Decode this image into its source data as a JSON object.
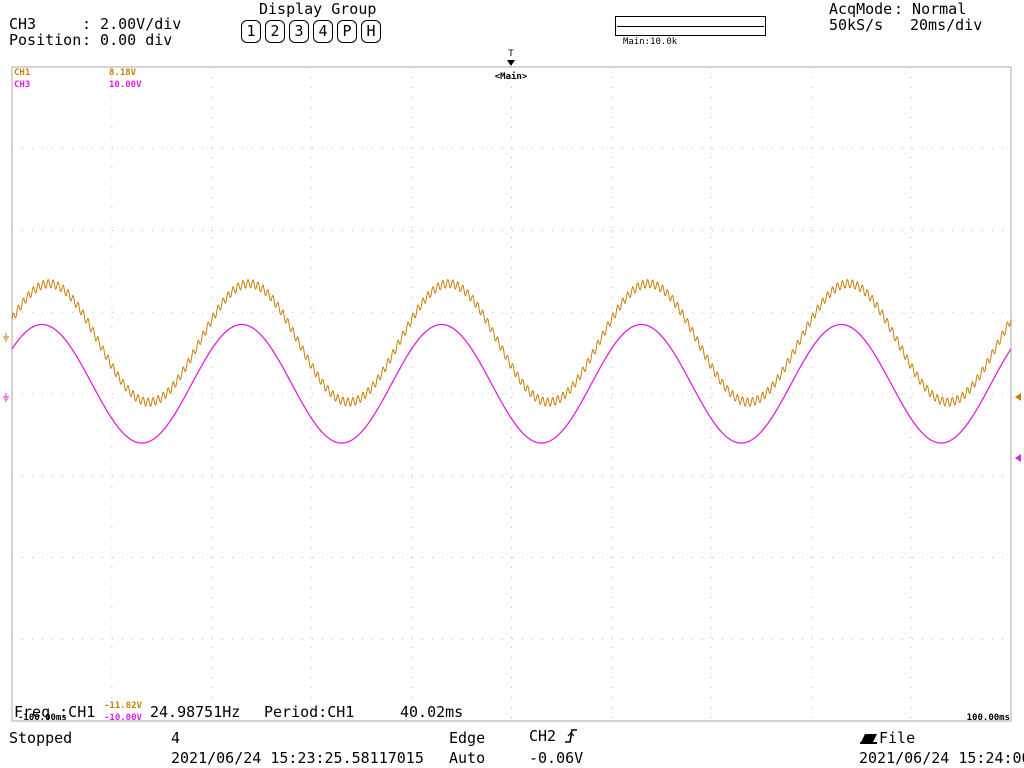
{
  "header": {
    "ch_name": "CH3",
    "ch_volt": ": 2.00V/div",
    "position_label": "Position",
    "position_value": ": 0.00 div",
    "display_group_title": "Display Group",
    "display_group_buttons": [
      "1",
      "2",
      "3",
      "4",
      "P",
      "H"
    ],
    "main_zoom": "Main:10.0k",
    "acqmode_label": "AcqMode",
    "acqmode_value": ": Normal",
    "sample_rate": "50kS/s",
    "timebase": "20ms/div"
  },
  "trigger_marker": "T",
  "main_label": "<Main>",
  "channels": [
    {
      "name": "CH1",
      "level": "8.18V",
      "low": "-11.82V",
      "color": "#c87f0a"
    },
    {
      "name": "CH3",
      "level": "10.00V",
      "low": "-10.00V",
      "color": "#e020e0"
    }
  ],
  "time_left": "-100.00ms",
  "time_right": "100.00ms",
  "measure": {
    "freq_label": "Freq :CH1",
    "freq_value": "24.98751Hz",
    "period_label": "Period:CH1",
    "period_value": "40.02ms"
  },
  "status": {
    "state": "Stopped",
    "count": "4",
    "timestamp_start": "2021/06/24 15:23:25.58117015",
    "trig_type": "Edge",
    "trig_source": "CH2",
    "trig_mode": "Auto",
    "trig_level": "-0.06V",
    "save_target": "File",
    "timestamp_end": "2021/06/24 15:24:00"
  },
  "chart_data": {
    "type": "line",
    "xlabel": "",
    "ylabel": "",
    "xlim": [
      -100,
      100
    ],
    "ylim": [
      -8,
      8
    ],
    "grid": true,
    "series": [
      {
        "name": "CH1",
        "color": "#c87f0a",
        "frequency_hz": 25,
        "amplitude_div": 1.45,
        "offset_div": 1.25,
        "phase_deg": 203,
        "ripple_div": 0.1,
        "x": [
          -100,
          -95,
          -90,
          -85,
          -80,
          -75,
          -70,
          -65,
          -60,
          -55,
          -50,
          -45,
          -40,
          -35,
          -30,
          -25,
          -20,
          -15,
          -10,
          -5,
          0,
          5,
          10,
          15,
          20,
          25,
          30,
          35,
          40,
          45,
          50,
          55,
          60,
          65,
          70,
          75,
          80,
          85,
          90,
          95,
          100
        ],
        "y": [
          2.0,
          1.3,
          -0.2,
          -0.1,
          1.3,
          2.6,
          2.6,
          1.2,
          -0.2,
          0,
          1.4,
          2.6,
          2.6,
          1.1,
          -0.2,
          0.1,
          1.5,
          2.7,
          2.5,
          1,
          -0.2,
          0.2,
          1.6,
          2.7,
          2.4,
          0.9,
          -0.2,
          0.3,
          1.7,
          2.7,
          2.3,
          0.8,
          -0.2,
          0.4,
          1.8,
          2.7,
          2.2,
          0.7,
          -0.1,
          0.5,
          2.0
        ]
      },
      {
        "name": "CH3",
        "color": "#e020e0",
        "frequency_hz": 25,
        "amplitude_div": 1.45,
        "offset_div": 0.25,
        "phase_deg": -144,
        "x": [
          -100,
          -95,
          -90,
          -85,
          -80,
          -75,
          -70,
          -65,
          -60,
          -55,
          -50,
          -45,
          -40,
          -35,
          -30,
          -25,
          -20,
          -15,
          -10,
          -5,
          0,
          5,
          10,
          15,
          20,
          25,
          30,
          35,
          40,
          45,
          50,
          55,
          60,
          65,
          70,
          75,
          80,
          85,
          90,
          95,
          100
        ],
        "y": [
          1.0,
          -0.3,
          -1.2,
          -0.6,
          0.9,
          1.7,
          1.2,
          -0.3,
          -1.2,
          -0.6,
          0.9,
          1.7,
          1.2,
          -0.3,
          -1.2,
          -0.6,
          0.9,
          1.7,
          1.2,
          -0.3,
          -1.2,
          -0.6,
          0.9,
          1.7,
          1.2,
          -0.3,
          -1.2,
          -0.6,
          0.9,
          1.7,
          1.2,
          -0.3,
          -1.2,
          -0.6,
          0.9,
          1.7,
          1.2,
          -0.3,
          -1.2,
          -0.6,
          1.0
        ]
      }
    ]
  }
}
